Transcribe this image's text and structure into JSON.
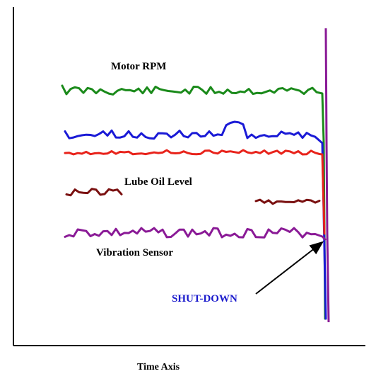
{
  "chart_data": {
    "type": "line",
    "title": "",
    "xlabel": "Time Axis",
    "ylabel": "",
    "grid": false,
    "legend": "none",
    "series": [
      {
        "name": "Motor RPM",
        "color": "#1a8a1a"
      },
      {
        "name": "",
        "color": "#1a1ad6"
      },
      {
        "name": "",
        "color": "#e8231b"
      },
      {
        "name": "Lube Oil Level",
        "color": "#7a1010"
      },
      {
        "name": "Vibration Sensor",
        "color": "#8a1a96"
      }
    ],
    "annotations": [
      {
        "text": "SHUT-DOWN",
        "color": "#1a1acc"
      }
    ],
    "event_line_color": "#8a1a96"
  }
}
